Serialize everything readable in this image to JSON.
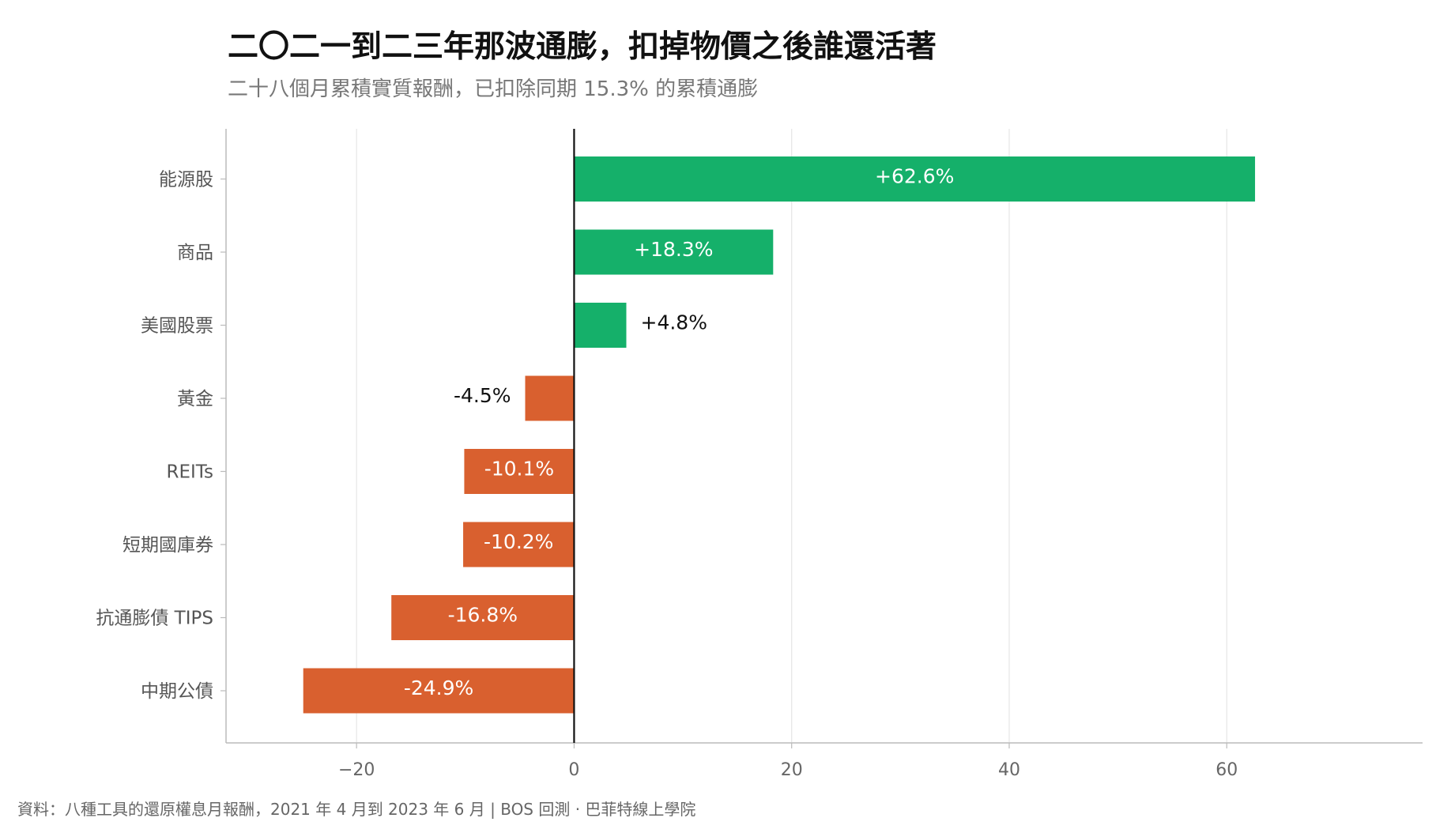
{
  "title": "二〇二一到二三年那波通膨，扣掉物價之後誰還活著",
  "subtitle": "二十八個月累積實質報酬，已扣除同期 15.3% 的累積通膨",
  "source": "資料：八種工具的還原權息月報酬，2021 年 4 月到 2023 年 6 月 | BOS 回測 · 巴菲特線上學院",
  "colors": {
    "positive": "#15b06a",
    "negative": "#d9602f",
    "grid": "#e6e6e6",
    "axis": "#bbbbbb",
    "zero": "#111111"
  },
  "chart_data": {
    "type": "bar",
    "orientation": "horizontal",
    "categories": [
      "能源股",
      "商品",
      "美國股票",
      "黃金",
      "REITs",
      "短期國庫券",
      "抗通膨債 TIPS",
      "中期公債"
    ],
    "values": [
      62.6,
      18.3,
      4.8,
      -4.5,
      -10.1,
      -10.2,
      -16.8,
      -24.9
    ],
    "value_labels": [
      "+62.6%",
      "+18.3%",
      "+4.8%",
      "-4.5%",
      "-10.1%",
      "-10.2%",
      "-16.8%",
      "-24.9%"
    ],
    "x_ticks": [
      -20,
      0,
      20,
      40,
      60
    ],
    "x_tick_labels": [
      "−20",
      "0",
      "20",
      "40",
      "60"
    ],
    "xlim": [
      -32,
      78
    ],
    "grid": "vertical",
    "legend": "none"
  }
}
